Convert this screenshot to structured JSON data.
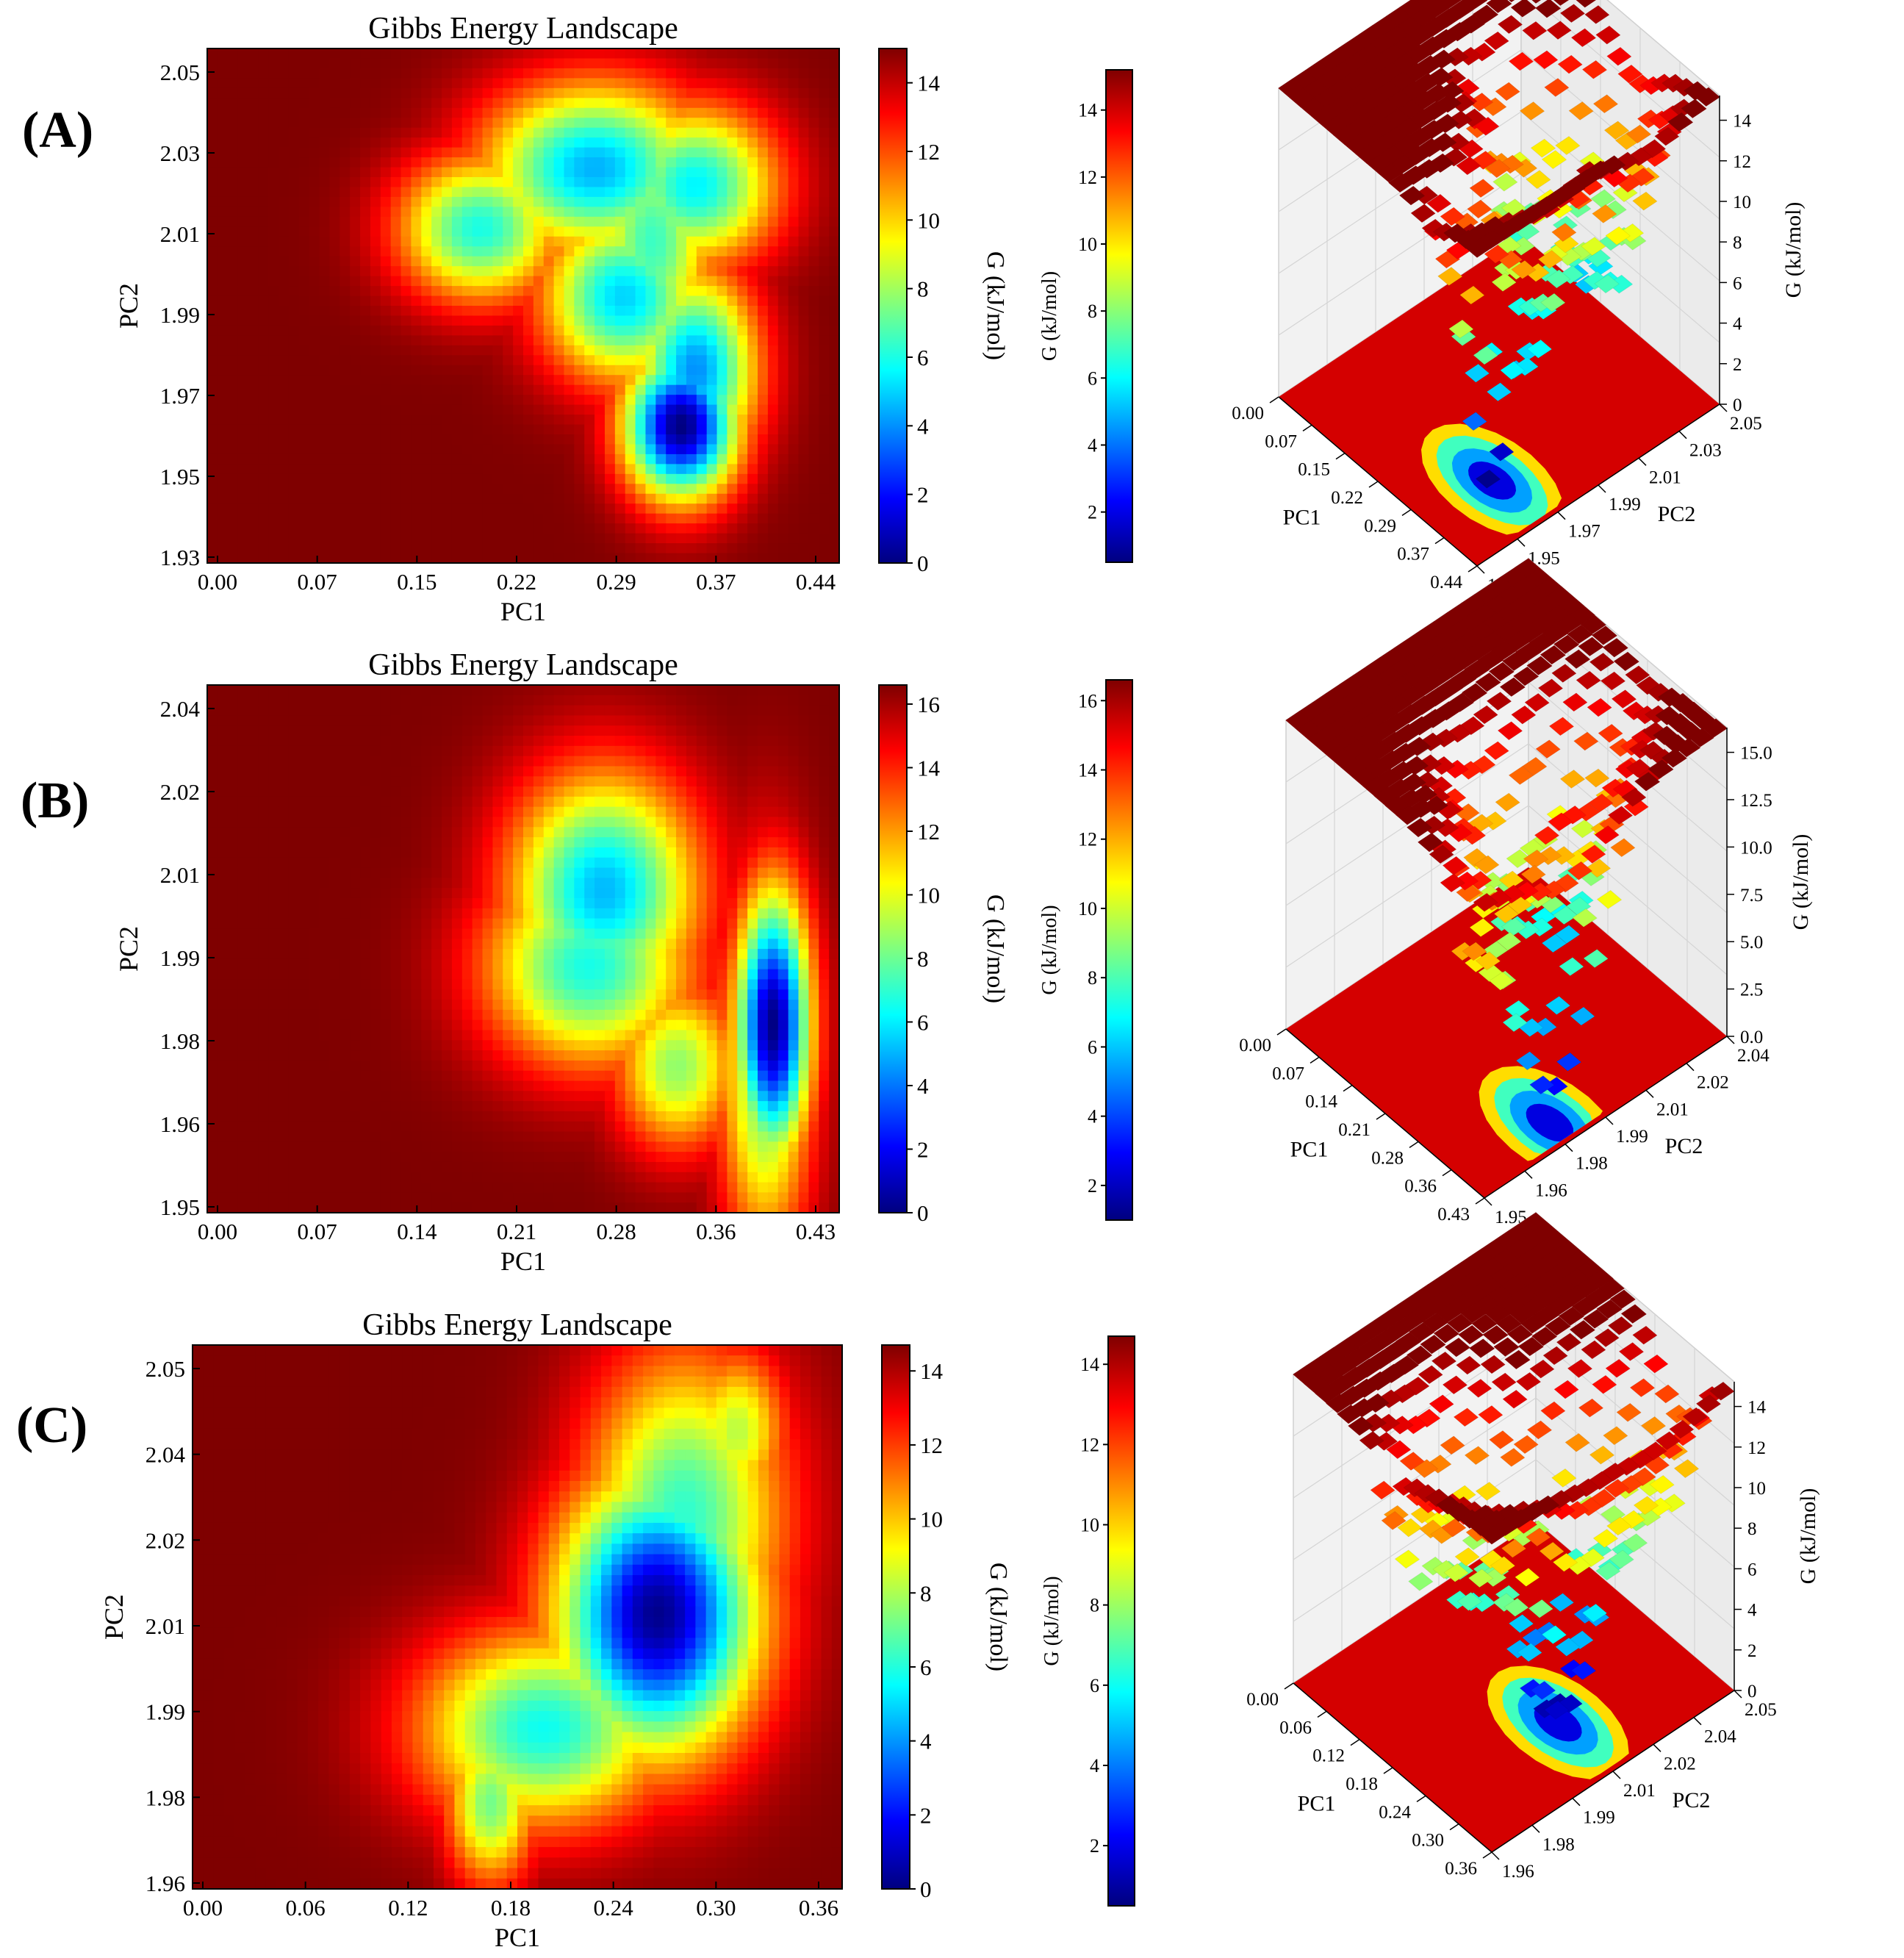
{
  "colormap": {
    "name": "jet",
    "stops": [
      "#00007f",
      "#0000ff",
      "#007fff",
      "#00ffff",
      "#7fff7f",
      "#ffff00",
      "#ff7f00",
      "#ff0000",
      "#7f0000"
    ]
  },
  "chart_data": [
    {
      "panel": "(A)",
      "type": "heatmap",
      "title": "Gibbs Energy Landscape",
      "xlabel": "PC1",
      "ylabel": "PC2",
      "xticks": [
        "0.00",
        "0.07",
        "0.15",
        "0.22",
        "0.29",
        "0.37",
        "0.44"
      ],
      "yticks": [
        "1.93",
        "1.95",
        "1.97",
        "1.99",
        "2.01",
        "2.03",
        "2.05"
      ],
      "xlim": [
        0.0,
        0.44
      ],
      "ylim": [
        1.93,
        2.05
      ],
      "colorbar_label": "G (kJ/mol)",
      "colorbar_ticks": [
        "0",
        "2",
        "4",
        "6",
        "8",
        "10",
        "12",
        "14"
      ],
      "colorbar_range": [
        0,
        15
      ],
      "basins": [
        {
          "x": 0.33,
          "y": 1.962,
          "sx": 0.028,
          "sy": 0.012,
          "depth": 15.0
        },
        {
          "x": 0.34,
          "y": 1.975,
          "sx": 0.03,
          "sy": 0.016,
          "depth": 11.0
        },
        {
          "x": 0.29,
          "y": 1.992,
          "sx": 0.04,
          "sy": 0.014,
          "depth": 10.0
        },
        {
          "x": 0.27,
          "y": 2.022,
          "sx": 0.055,
          "sy": 0.014,
          "depth": 10.5
        },
        {
          "x": 0.19,
          "y": 2.008,
          "sx": 0.04,
          "sy": 0.012,
          "depth": 9.0
        },
        {
          "x": 0.34,
          "y": 2.018,
          "sx": 0.04,
          "sy": 0.013,
          "depth": 9.5
        },
        {
          "x": 0.31,
          "y": 2.005,
          "sx": 0.03,
          "sy": 0.02,
          "depth": 8.5
        }
      ],
      "surface3d": {
        "title": "Gibbs Energy Landscape",
        "xlabel": "PC1",
        "ylabel": "PC2",
        "zlabel": "G (kJ/mol)",
        "xticks": [
          "0.00",
          "0.07",
          "0.15",
          "0.22",
          "0.29",
          "0.37",
          "0.44"
        ],
        "yticks": [
          "1.93",
          "1.95",
          "1.97",
          "1.99",
          "2.01",
          "2.03",
          "2.05"
        ],
        "zticks": [
          "0",
          "2",
          "4",
          "6",
          "8",
          "10",
          "12",
          "14"
        ],
        "colorbar_label": "G (kJ/mol)",
        "colorbar_ticks": [
          "2",
          "4",
          "6",
          "8",
          "10",
          "12",
          "14"
        ],
        "colorbar_range": [
          0.5,
          15.2
        ]
      }
    },
    {
      "panel": "(B)",
      "type": "heatmap",
      "title": "Gibbs Energy Landscape",
      "xlabel": "PC1",
      "ylabel": "PC2",
      "xticks": [
        "0.00",
        "0.07",
        "0.14",
        "0.21",
        "0.28",
        "0.36",
        "0.43"
      ],
      "yticks": [
        "1.95",
        "1.96",
        "1.98",
        "1.99",
        "2.01",
        "2.02",
        "2.04"
      ],
      "xlim": [
        0.0,
        0.43
      ],
      "ylim": [
        1.95,
        2.04
      ],
      "colorbar_label": "G (kJ/mol)",
      "colorbar_ticks": [
        "0",
        "2",
        "4",
        "6",
        "8",
        "10",
        "12",
        "14",
        "16"
      ],
      "colorbar_range": [
        0,
        16.6
      ],
      "basins": [
        {
          "x": 0.385,
          "y": 1.982,
          "sx": 0.018,
          "sy": 0.016,
          "depth": 16.5
        },
        {
          "x": 0.38,
          "y": 1.975,
          "sx": 0.022,
          "sy": 0.022,
          "depth": 9.0
        },
        {
          "x": 0.27,
          "y": 2.005,
          "sx": 0.045,
          "sy": 0.014,
          "depth": 11.5
        },
        {
          "x": 0.26,
          "y": 1.992,
          "sx": 0.05,
          "sy": 0.012,
          "depth": 10.0
        },
        {
          "x": 0.32,
          "y": 1.975,
          "sx": 0.03,
          "sy": 0.01,
          "depth": 8.0
        }
      ],
      "surface3d": {
        "title": "Gibbs Energy Landscape",
        "xlabel": "PC1",
        "ylabel": "PC2",
        "zlabel": "G (kJ/mol)",
        "xticks": [
          "0.00",
          "0.07",
          "0.14",
          "0.21",
          "0.28",
          "0.36",
          "0.43"
        ],
        "yticks": [
          "1.95",
          "1.96",
          "1.98",
          "1.99",
          "2.01",
          "2.02",
          "2.04"
        ],
        "zticks": [
          "0.0",
          "2.5",
          "5.0",
          "7.5",
          "10.0",
          "12.5",
          "15.0"
        ],
        "colorbar_label": "G (kJ/mol)",
        "colorbar_ticks": [
          "2",
          "4",
          "6",
          "8",
          "10",
          "12",
          "14",
          "16"
        ],
        "colorbar_range": [
          1.0,
          16.6
        ]
      }
    },
    {
      "panel": "(C)",
      "type": "heatmap",
      "title": "Gibbs Energy Landscape",
      "xlabel": "PC1",
      "ylabel": "PC2",
      "xticks": [
        "0.00",
        "0.06",
        "0.12",
        "0.18",
        "0.24",
        "0.30",
        "0.36"
      ],
      "yticks": [
        "1.96",
        "1.98",
        "1.99",
        "2.01",
        "2.02",
        "2.04",
        "2.05"
      ],
      "xlim": [
        0.0,
        0.37
      ],
      "ylim": [
        1.96,
        2.055
      ],
      "colorbar_label": "G (kJ/mol)",
      "colorbar_ticks": [
        "0",
        "2",
        "4",
        "6",
        "8",
        "10",
        "12",
        "14"
      ],
      "colorbar_range": [
        0,
        14.7
      ],
      "basins": [
        {
          "x": 0.265,
          "y": 2.008,
          "sx": 0.04,
          "sy": 0.017,
          "depth": 14.5
        },
        {
          "x": 0.28,
          "y": 2.025,
          "sx": 0.04,
          "sy": 0.02,
          "depth": 8.5
        },
        {
          "x": 0.2,
          "y": 1.988,
          "sx": 0.05,
          "sy": 0.012,
          "depth": 9.0
        },
        {
          "x": 0.17,
          "y": 1.975,
          "sx": 0.018,
          "sy": 0.01,
          "depth": 7.5
        },
        {
          "x": 0.31,
          "y": 2.04,
          "sx": 0.02,
          "sy": 0.01,
          "depth": 6.5
        }
      ],
      "surface3d": {
        "title": "Gibbs Energy Landscape",
        "xlabel": "PC1",
        "ylabel": "PC2",
        "zlabel": "G (kJ/mol)",
        "xticks": [
          "0.00",
          "0.06",
          "0.12",
          "0.18",
          "0.24",
          "0.30",
          "0.36"
        ],
        "yticks": [
          "1.96",
          "1.98",
          "1.99",
          "2.01",
          "2.02",
          "2.04",
          "2.05"
        ],
        "zticks": [
          "0",
          "2",
          "4",
          "6",
          "8",
          "10",
          "12",
          "14"
        ],
        "colorbar_label": "G (kJ/mol)",
        "colorbar_ticks": [
          "2",
          "4",
          "6",
          "8",
          "10",
          "12",
          "14"
        ],
        "colorbar_range": [
          0.5,
          14.7
        ]
      }
    }
  ]
}
